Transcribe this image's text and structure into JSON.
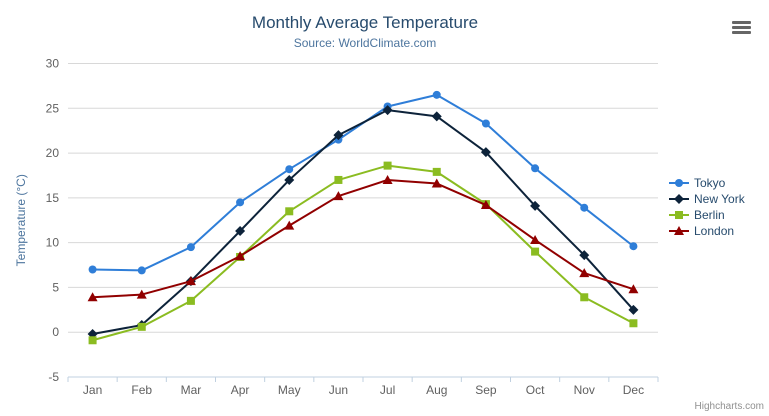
{
  "chart_data": {
    "type": "line",
    "title": "Monthly Average Temperature",
    "subtitle": "Source: WorldClimate.com",
    "categories": [
      "Jan",
      "Feb",
      "Mar",
      "Apr",
      "May",
      "Jun",
      "Jul",
      "Aug",
      "Sep",
      "Oct",
      "Nov",
      "Dec"
    ],
    "xlabel": "",
    "ylabel": "Temperature (°C)",
    "ylim": [
      -5,
      30
    ],
    "ytick_step": 5,
    "yticks": [
      -5,
      0,
      5,
      10,
      15,
      20,
      25,
      30
    ],
    "grid": true,
    "legend_position": "right",
    "series": [
      {
        "name": "Tokyo",
        "color": "#2f7ed8",
        "marker": "circle",
        "values": [
          7.0,
          6.9,
          9.5,
          14.5,
          18.2,
          21.5,
          25.2,
          26.5,
          23.3,
          18.3,
          13.9,
          9.6
        ]
      },
      {
        "name": "New York",
        "color": "#0d233a",
        "marker": "diamond",
        "values": [
          -0.2,
          0.8,
          5.7,
          11.3,
          17.0,
          22.0,
          24.8,
          24.1,
          20.1,
          14.1,
          8.6,
          2.5
        ]
      },
      {
        "name": "Berlin",
        "color": "#8bbc21",
        "marker": "square",
        "values": [
          -0.9,
          0.6,
          3.5,
          8.4,
          13.5,
          17.0,
          18.6,
          17.9,
          14.3,
          9.0,
          3.9,
          1.0
        ]
      },
      {
        "name": "London",
        "color": "#910000",
        "marker": "triangle",
        "values": [
          3.9,
          4.2,
          5.7,
          8.5,
          11.9,
          15.2,
          17.0,
          16.6,
          14.2,
          10.3,
          6.6,
          4.8
        ]
      }
    ]
  },
  "credits": {
    "label": "Highcharts.com"
  },
  "export_menu": {
    "icon": "hamburger-icon"
  },
  "colors": {
    "title": "#274b6d",
    "subtitle": "#4d759e",
    "axis_title": "#4d759e",
    "axis_labels": "#606060",
    "legend_text": "#274b6d",
    "gridline": "#d8d8d8",
    "axis_line": "#c0d0e0",
    "background": "#ffffff",
    "credits_text": "#909090",
    "export_icon": "#666666"
  }
}
